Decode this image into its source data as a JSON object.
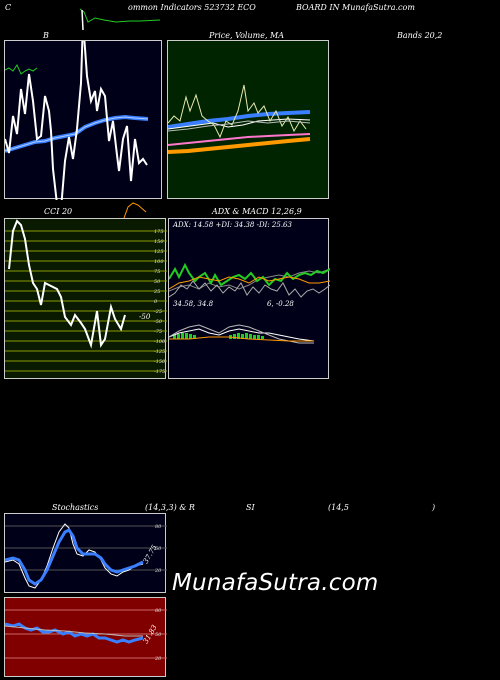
{
  "header": {
    "c": "C",
    "title": "ommon  Indicators 523732  ECO",
    "board": "BOARD IN  MunafaSutra.com"
  },
  "panels": {
    "bollinger_left_label": "B",
    "price_label": "Price,  Volume,  MA",
    "price_label_overlap": "Price, MA",
    "bands_label": "Bands 20,2",
    "cci_label": "CCI 20",
    "adx_label": "ADX  & MACD 12,26,9",
    "adx_values": "ADX: 14.58  +DI: 34.38  -DI: 25.63",
    "macd_values_a": "34.58,  34.8",
    "macd_values_b": "6,  -0.28",
    "cci_value": "-50",
    "stoch_label_a": "Stochastics",
    "stoch_label_b": "(14,3,3) & R",
    "stoch_label_c": "SI",
    "stoch_label_d": "(14,5",
    "stoch_label_e": ")",
    "stoch_value": "37.75",
    "rsi_value": "31.83"
  },
  "cci_ticks": [
    "175",
    "150",
    "125",
    "100",
    "75",
    "50",
    "25",
    "0",
    "-25",
    "-50",
    "-75",
    "-100",
    "-125",
    "-150",
    "-175"
  ],
  "stoch_ticks": [
    "80",
    "50",
    "20"
  ],
  "rsi_ticks": [
    "80",
    "50",
    "20"
  ],
  "watermark": "MunafaSutra.com",
  "colors": {
    "panel_bg_dark": "#000018",
    "price_bg": "#002400",
    "cci_bg": "#0a1a00",
    "rsi_bg": "#800000",
    "blue": "#3a7fff",
    "green": "#22cc22",
    "orange": "#ff9900",
    "pink": "#ff77cc"
  }
}
